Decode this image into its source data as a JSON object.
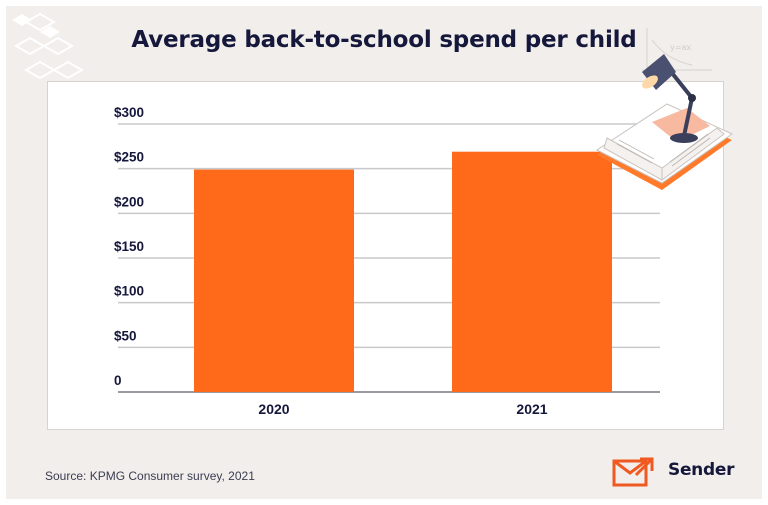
{
  "title": "Average back-to-school spend per child",
  "source": "Source: KPMG Consumer survey, 2021",
  "brand": {
    "name": "Sender"
  },
  "colors": {
    "bar": "#ff6a1a",
    "background": "#f1eeeb",
    "title": "#15173b",
    "grid": "#c9c9cc",
    "brand_accent": "#f05a22"
  },
  "chart_data": {
    "type": "bar",
    "categories": [
      "2020",
      "2021"
    ],
    "values": [
      249,
      269
    ],
    "ytick_labels": [
      "0",
      "$50",
      "$100",
      "$150",
      "$200",
      "$250",
      "$300"
    ],
    "ytick_values": [
      0,
      50,
      100,
      150,
      200,
      250,
      300
    ],
    "ylim": [
      0,
      300
    ],
    "xlabel": "",
    "ylabel": "",
    "grid": true
  }
}
